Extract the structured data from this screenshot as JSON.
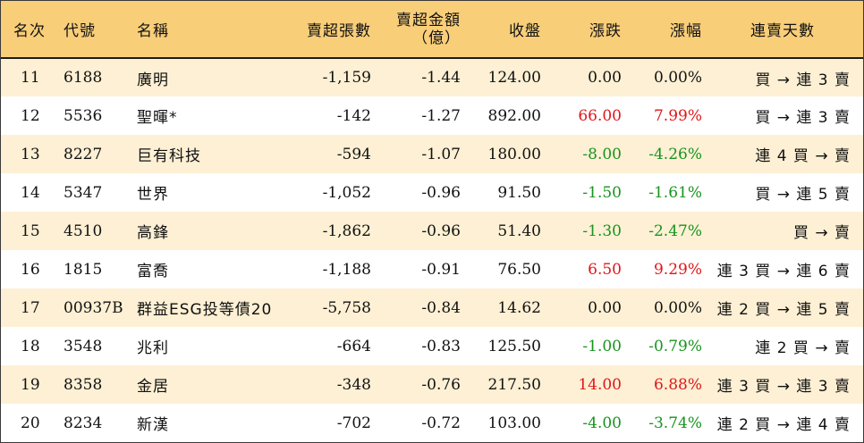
{
  "headers": {
    "rank": "名次",
    "code": "代號",
    "name": "名稱",
    "net_sell_lots": "賣超張數",
    "net_sell_amount_l1": "賣超金額",
    "net_sell_amount_l2": "（億）",
    "close": "收盤",
    "change": "漲跌",
    "change_pct": "漲幅",
    "streak": "連賣天數"
  },
  "colors": {
    "header_bg": "#f9ce79",
    "odd_row_bg": "#fdf0d4",
    "up": "#e0161b",
    "down": "#17941d"
  },
  "rows": [
    {
      "rank": "11",
      "code": "6188",
      "name": "廣明",
      "lots": "-1,159",
      "amount": "-1.44",
      "close": "124.00",
      "change": "0.00",
      "pct": "0.00%",
      "dir": "flat",
      "streak": "買 → 連 3 賣"
    },
    {
      "rank": "12",
      "code": "5536",
      "name": "聖暉*",
      "lots": "-142",
      "amount": "-1.27",
      "close": "892.00",
      "change": "66.00",
      "pct": "7.99%",
      "dir": "up",
      "streak": "買 → 連 3 賣"
    },
    {
      "rank": "13",
      "code": "8227",
      "name": "巨有科技",
      "lots": "-594",
      "amount": "-1.07",
      "close": "180.00",
      "change": "-8.00",
      "pct": "-4.26%",
      "dir": "down",
      "streak": "連 4 買 → 賣"
    },
    {
      "rank": "14",
      "code": "5347",
      "name": "世界",
      "lots": "-1,052",
      "amount": "-0.96",
      "close": "91.50",
      "change": "-1.50",
      "pct": "-1.61%",
      "dir": "down",
      "streak": "買 → 連 5 賣"
    },
    {
      "rank": "15",
      "code": "4510",
      "name": "高鋒",
      "lots": "-1,862",
      "amount": "-0.96",
      "close": "51.40",
      "change": "-1.30",
      "pct": "-2.47%",
      "dir": "down",
      "streak": "買 → 賣"
    },
    {
      "rank": "16",
      "code": "1815",
      "name": "富喬",
      "lots": "-1,188",
      "amount": "-0.91",
      "close": "76.50",
      "change": "6.50",
      "pct": "9.29%",
      "dir": "up",
      "streak": "連 3 買 → 連 6 賣"
    },
    {
      "rank": "17",
      "code": "00937B",
      "name": "群益ESG投等債20",
      "lots": "-5,758",
      "amount": "-0.84",
      "close": "14.62",
      "change": "0.00",
      "pct": "0.00%",
      "dir": "flat",
      "streak": "連 2 買 → 連 5 賣"
    },
    {
      "rank": "18",
      "code": "3548",
      "name": "兆利",
      "lots": "-664",
      "amount": "-0.83",
      "close": "125.50",
      "change": "-1.00",
      "pct": "-0.79%",
      "dir": "down",
      "streak": "連 2 買 → 賣"
    },
    {
      "rank": "19",
      "code": "8358",
      "name": "金居",
      "lots": "-348",
      "amount": "-0.76",
      "close": "217.50",
      "change": "14.00",
      "pct": "6.88%",
      "dir": "up",
      "streak": "連 3 買 → 連 3 賣"
    },
    {
      "rank": "20",
      "code": "8234",
      "name": "新漢",
      "lots": "-702",
      "amount": "-0.72",
      "close": "103.00",
      "change": "-4.00",
      "pct": "-3.74%",
      "dir": "down",
      "streak": "連 2 買 → 連 4 賣"
    }
  ]
}
